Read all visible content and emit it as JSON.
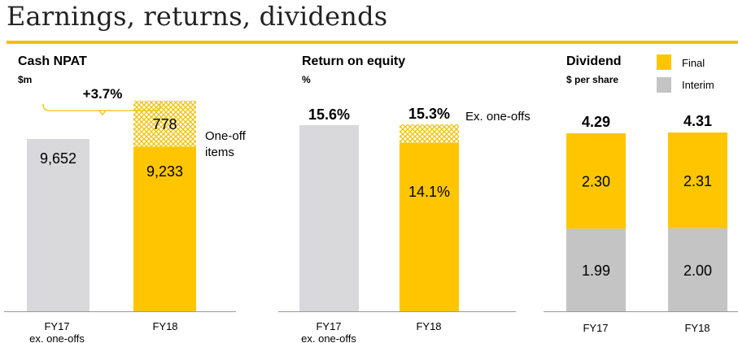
{
  "page": {
    "title": "Earnings, returns, dividends"
  },
  "colors": {
    "grey_bar": "#d9d9db",
    "yellow": "#ffc600",
    "interim_grey": "#c4c4c4",
    "hatch_line": "#f2c100",
    "axis": "#999999",
    "brace": "#f2c100"
  },
  "chart_data": [
    {
      "id": "cash-npat",
      "type": "bar",
      "title": "Cash NPAT",
      "unit": "$m",
      "categories": [
        "FY17\nex. one-offs",
        "FY18"
      ],
      "category_lines": [
        [
          "FY17",
          "ex. one-offs"
        ],
        [
          "FY18"
        ]
      ],
      "series": [
        {
          "values": [
            9652,
            9233
          ],
          "labels": [
            "9,652",
            "9,233"
          ],
          "colors": [
            "#d9d9db",
            "#ffc600"
          ]
        },
        {
          "name": "One-off items",
          "values": [
            0,
            778
          ],
          "labels": [
            "",
            "778"
          ],
          "pattern": "hatch"
        }
      ],
      "annotation_label": "One-off\nitems",
      "change_label": "+3.7%",
      "ylim": [
        0,
        11000
      ]
    },
    {
      "id": "roe",
      "type": "bar",
      "title": "Return on equity",
      "unit": "%",
      "categories": [
        "FY17\nex. one-offs",
        "FY18"
      ],
      "category_lines": [
        [
          "FY17",
          "ex. one-offs"
        ],
        [
          "FY18"
        ]
      ],
      "series": [
        {
          "values": [
            15.6,
            14.1
          ],
          "labels": [
            "",
            "14.1%"
          ],
          "colors": [
            "#d9d9db",
            "#ffc600"
          ]
        },
        {
          "name": "Ex. one-offs",
          "values": [
            0,
            1.2
          ],
          "labels": [
            "",
            ""
          ],
          "pattern": "hatch"
        }
      ],
      "totals": [
        "15.6%",
        "15.3%"
      ],
      "annotation_label": "Ex. one-offs",
      "ylim": [
        0,
        17
      ]
    },
    {
      "id": "dividend",
      "type": "bar",
      "title": "Dividend",
      "unit": "$ per share",
      "categories": [
        "FY17",
        "FY18"
      ],
      "category_lines": [
        [
          "FY17"
        ],
        [
          "FY18"
        ]
      ],
      "legend": [
        {
          "name": "Final",
          "color": "#ffc600"
        },
        {
          "name": "Interim",
          "color": "#c4c4c4"
        }
      ],
      "legend_position": "top-right",
      "series": [
        {
          "name": "Interim",
          "values": [
            1.99,
            2.0
          ],
          "labels": [
            "1.99",
            "2.00"
          ]
        },
        {
          "name": "Final",
          "values": [
            2.3,
            2.31
          ],
          "labels": [
            "2.30",
            "2.31"
          ]
        }
      ],
      "totals": [
        "4.29",
        "4.31"
      ],
      "ylim": [
        0,
        5.2
      ]
    }
  ]
}
